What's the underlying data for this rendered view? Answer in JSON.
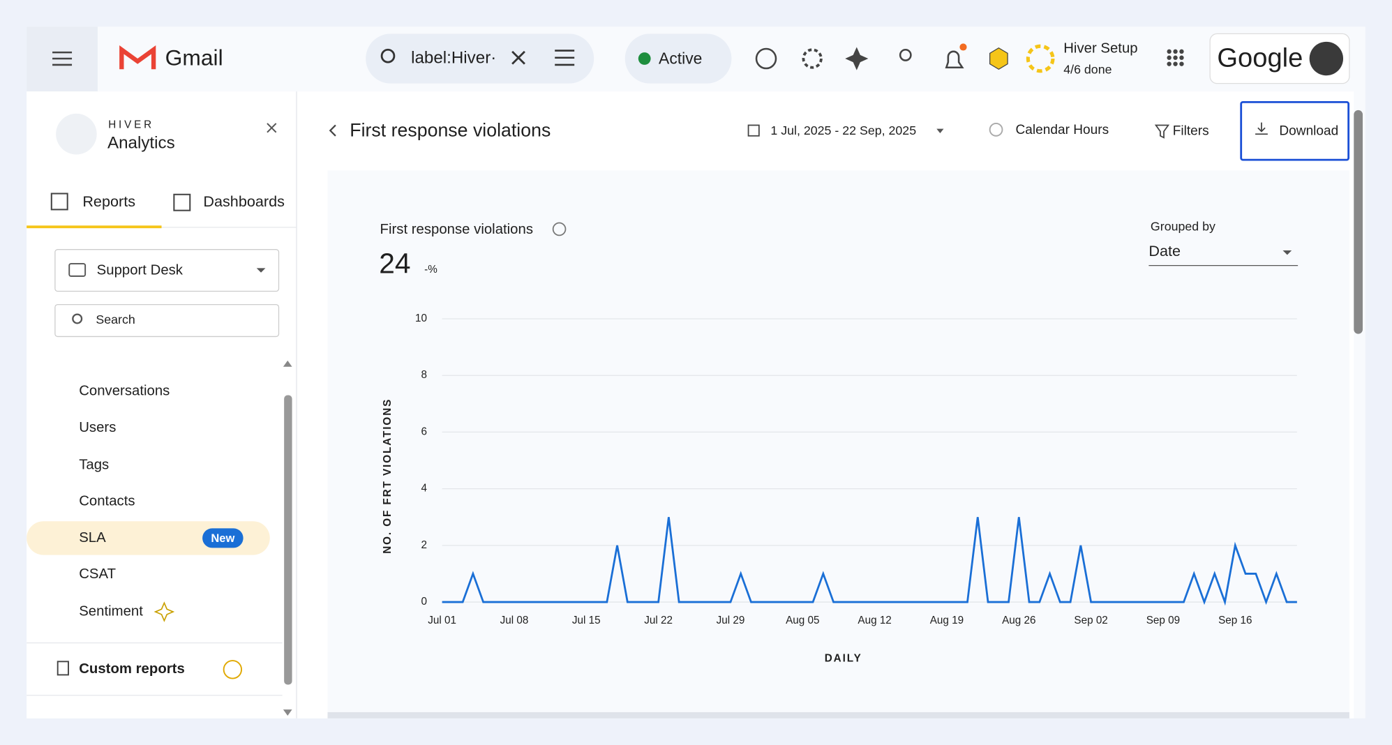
{
  "header": {
    "app": "Gmail",
    "search": "label:Hiver·",
    "status": "Active",
    "setup_title": "Hiver Setup",
    "setup_progress": "4/6 done",
    "brand": "Google"
  },
  "sidebar": {
    "brand_small": "HIVER",
    "brand": "Analytics",
    "tabs": [
      "Reports",
      "Dashboards"
    ],
    "inbox": "Support Desk",
    "search_placeholder": "Search",
    "items": [
      "Conversations",
      "Users",
      "Tags",
      "Contacts",
      "SLA",
      "CSAT",
      "Sentiment"
    ],
    "badge": "New",
    "custom": "Custom reports"
  },
  "toolbar": {
    "title": "First response violations",
    "date_range": "1 Jul, 2025 - 22 Sep, 2025",
    "hours": "Calendar Hours",
    "filters": "Filters",
    "download": "Download"
  },
  "card": {
    "title": "First response violations",
    "total": 24,
    "delta": "-%",
    "group_label": "Grouped by",
    "group_value": "Date"
  },
  "chart_data": {
    "type": "line",
    "ylabel": "NO. OF FRT VIOLATIONS",
    "xlabel": "DAILY",
    "categories": [
      "Jul 01",
      null,
      null,
      null,
      null,
      null,
      null,
      "Jul 08",
      null,
      null,
      null,
      null,
      null,
      null,
      "Jul 15",
      null,
      null,
      null,
      null,
      null,
      null,
      "Jul 22",
      null,
      null,
      null,
      null,
      null,
      null,
      "Jul 29",
      null,
      null,
      null,
      null,
      null,
      null,
      "Aug 05",
      null,
      null,
      null,
      null,
      null,
      null,
      "Aug 12",
      null,
      null,
      null,
      null,
      null,
      null,
      "Aug 19",
      null,
      null,
      null,
      null,
      null,
      null,
      "Aug 26",
      null,
      null,
      null,
      null,
      null,
      null,
      "Sep 02",
      null,
      null,
      null,
      null,
      null,
      null,
      "Sep 09",
      null,
      null,
      null,
      null,
      null,
      null,
      "Sep 16",
      null,
      null,
      null,
      null,
      null,
      null
    ],
    "values": [
      0,
      0,
      0,
      1,
      0,
      0,
      0,
      0,
      0,
      0,
      0,
      0,
      0,
      0,
      0,
      0,
      0,
      2,
      0,
      0,
      0,
      0,
      3,
      0,
      0,
      0,
      0,
      0,
      0,
      1,
      0,
      0,
      0,
      0,
      0,
      0,
      0,
      1,
      0,
      0,
      0,
      0,
      0,
      0,
      0,
      0,
      0,
      0,
      0,
      0,
      0,
      0,
      3,
      0,
      0,
      0,
      3,
      0,
      0,
      1,
      0,
      0,
      2,
      0,
      0,
      0,
      0,
      0,
      0,
      0,
      0,
      0,
      0,
      1,
      0,
      1,
      0,
      2,
      1,
      1,
      0,
      1,
      0,
      0
    ],
    "color": "#1a6fd6",
    "ylim": [
      0,
      10
    ],
    "yticks": [
      0,
      2,
      4,
      6,
      8,
      10
    ],
    "grid": true
  }
}
